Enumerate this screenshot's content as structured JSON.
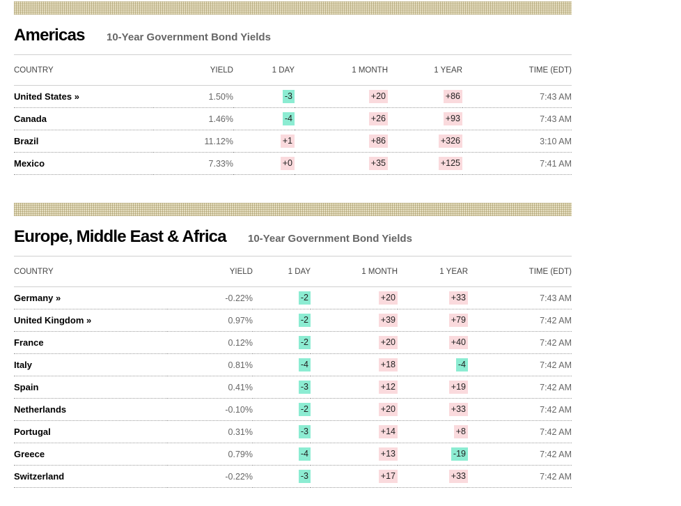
{
  "sections": [
    {
      "title": "Americas",
      "subtitle": "10-Year Government Bond Yields",
      "headers": [
        "COUNTRY",
        "YIELD",
        "1 DAY",
        "1 MONTH",
        "1 YEAR",
        "TIME (EDT)"
      ],
      "rows": [
        {
          "country": "United States",
          "link_arrow": "»",
          "yield": "1.50%",
          "day": "-3",
          "month": "+20",
          "year": "+86",
          "time": "7:43 AM"
        },
        {
          "country": "Canada",
          "link_arrow": "",
          "yield": "1.46%",
          "day": "-4",
          "month": "+26",
          "year": "+93",
          "time": "7:43 AM"
        },
        {
          "country": "Brazil",
          "link_arrow": "",
          "yield": "11.12%",
          "day": "+1",
          "month": "+86",
          "year": "+326",
          "time": "3:10 AM"
        },
        {
          "country": "Mexico",
          "link_arrow": "",
          "yield": "7.33%",
          "day": "+0",
          "month": "+35",
          "year": "+125",
          "time": "7:41 AM"
        }
      ]
    },
    {
      "title": "Europe, Middle East & Africa",
      "subtitle": "10-Year Government Bond Yields",
      "headers": [
        "COUNTRY",
        "YIELD",
        "1 DAY",
        "1 MONTH",
        "1 YEAR",
        "TIME (EDT)"
      ],
      "rows": [
        {
          "country": "Germany",
          "link_arrow": "»",
          "yield": "-0.22%",
          "day": "-2",
          "month": "+20",
          "year": "+33",
          "time": "7:43 AM"
        },
        {
          "country": "United Kingdom",
          "link_arrow": "»",
          "yield": "0.97%",
          "day": "-2",
          "month": "+39",
          "year": "+79",
          "time": "7:42 AM"
        },
        {
          "country": "France",
          "link_arrow": "",
          "yield": "0.12%",
          "day": "-2",
          "month": "+20",
          "year": "+40",
          "time": "7:42 AM"
        },
        {
          "country": "Italy",
          "link_arrow": "",
          "yield": "0.81%",
          "day": "-4",
          "month": "+18",
          "year": "-4",
          "time": "7:42 AM"
        },
        {
          "country": "Spain",
          "link_arrow": "",
          "yield": "0.41%",
          "day": "-3",
          "month": "+12",
          "year": "+19",
          "time": "7:42 AM"
        },
        {
          "country": "Netherlands",
          "link_arrow": "",
          "yield": "-0.10%",
          "day": "-2",
          "month": "+20",
          "year": "+33",
          "time": "7:42 AM"
        },
        {
          "country": "Portugal",
          "link_arrow": "",
          "yield": "0.31%",
          "day": "-3",
          "month": "+14",
          "year": "+8",
          "time": "7:42 AM"
        },
        {
          "country": "Greece",
          "link_arrow": "",
          "yield": "0.79%",
          "day": "-4",
          "month": "+13",
          "year": "-19",
          "time": "7:42 AM"
        },
        {
          "country": "Switzerland",
          "link_arrow": "",
          "yield": "-0.22%",
          "day": "-3",
          "month": "+17",
          "year": "+33",
          "time": "7:42 AM"
        }
      ]
    }
  ],
  "colors": {
    "positive_change_bg": "#fadadd",
    "negative_change_bg": "#8cecd2",
    "pattern_bar": "#e6dfc2"
  }
}
